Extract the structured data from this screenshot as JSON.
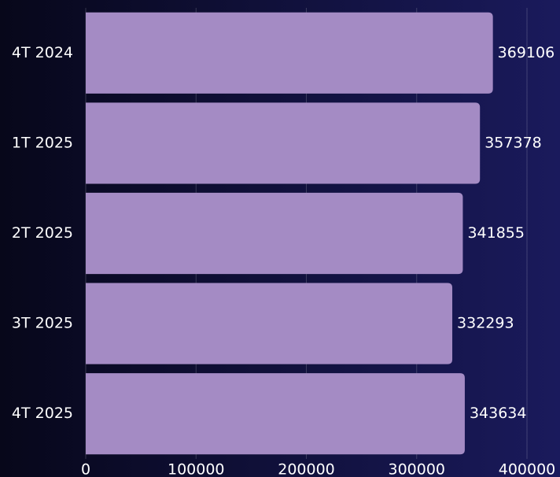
{
  "chart_data": {
    "type": "bar",
    "orientation": "horizontal",
    "categories": [
      "4T 2024",
      "1T 2025",
      "2T 2025",
      "3T 2025",
      "4T 2025"
    ],
    "values": [
      369106,
      357378,
      341855,
      332293,
      343634
    ],
    "color": "#a48bc4",
    "xlim": [
      0,
      400000
    ],
    "xticks": [
      0,
      100000,
      200000,
      300000,
      400000
    ],
    "grid": true
  }
}
